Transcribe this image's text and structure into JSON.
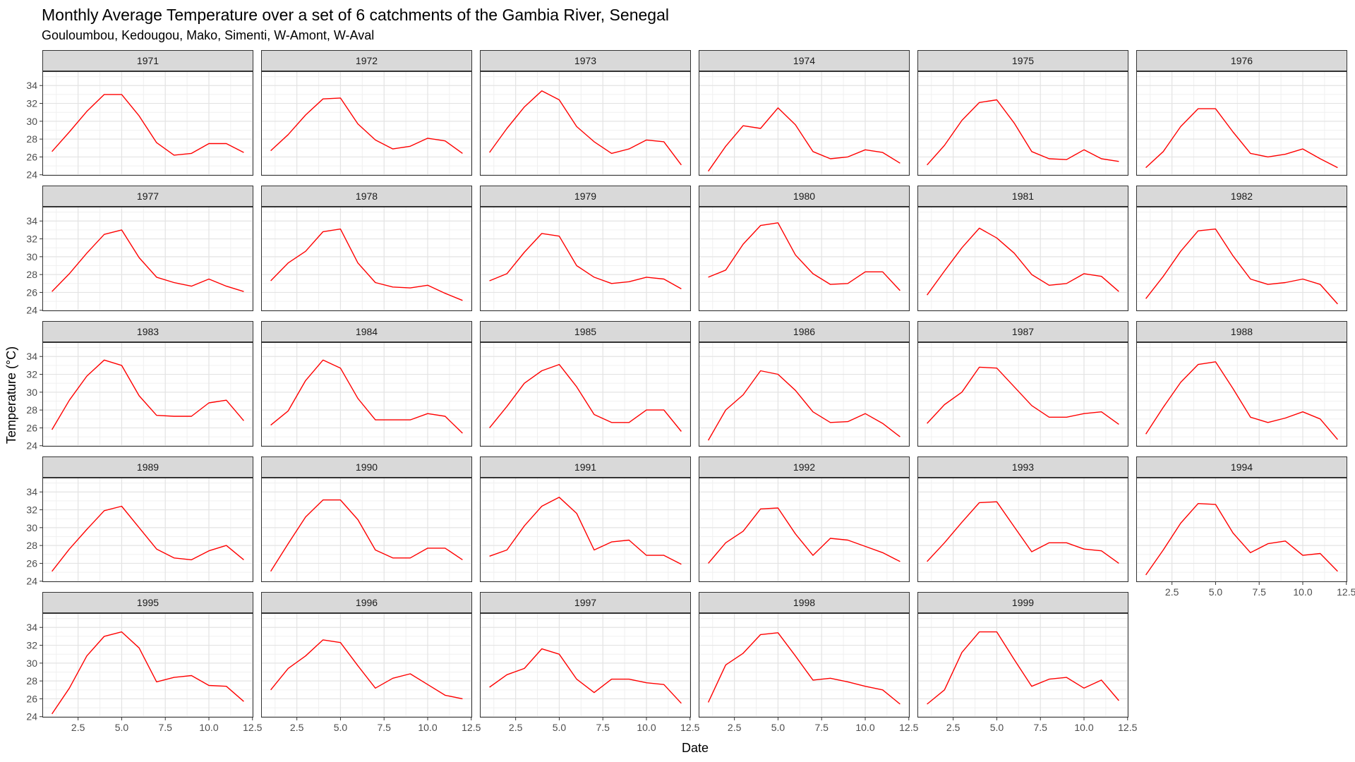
{
  "chart_data": {
    "type": "line",
    "title": "Monthly Average Temperature over a set of 6 catchments of the Gambia River, Senegal",
    "subtitle": "Gouloumbou, Kedougou, Mako, Simenti, W-Amont, W-Aval",
    "xlabel": "Date",
    "ylabel": "Temperature (°C)",
    "xlim": [
      0.45,
      12.55
    ],
    "ylim": [
      23.9,
      35.6
    ],
    "x_ticks": [
      2.5,
      5.0,
      7.5,
      10.0,
      12.5
    ],
    "x_tick_labels": [
      "2.5",
      "5.0",
      "7.5",
      "10.0",
      "12.5"
    ],
    "y_ticks": [
      24,
      26,
      28,
      30,
      32,
      34
    ],
    "y_tick_labels": [
      "24",
      "26",
      "28",
      "30",
      "32",
      "34"
    ],
    "grid": true,
    "line_color": "#ff0000",
    "x": [
      1,
      2,
      3,
      4,
      5,
      6,
      7,
      8,
      9,
      10,
      11,
      12
    ],
    "facets": [
      {
        "label": "1971",
        "values": [
          26.6,
          28.8,
          31.1,
          33.0,
          33.0,
          30.6,
          27.6,
          26.2,
          26.4,
          27.5,
          27.5,
          26.5
        ]
      },
      {
        "label": "1972",
        "values": [
          26.7,
          28.5,
          30.7,
          32.5,
          32.6,
          29.7,
          27.9,
          26.9,
          27.2,
          28.1,
          27.8,
          26.4
        ]
      },
      {
        "label": "1973",
        "values": [
          26.5,
          29.2,
          31.6,
          33.4,
          32.4,
          29.4,
          27.7,
          26.4,
          26.9,
          27.9,
          27.7,
          25.1
        ]
      },
      {
        "label": "1974",
        "values": [
          24.4,
          27.2,
          29.5,
          29.2,
          31.5,
          29.6,
          26.6,
          25.8,
          26.0,
          26.8,
          26.5,
          25.3
        ]
      },
      {
        "label": "1975",
        "values": [
          25.1,
          27.3,
          30.1,
          32.1,
          32.4,
          29.8,
          26.6,
          25.8,
          25.7,
          26.8,
          25.8,
          25.5
        ]
      },
      {
        "label": "1976",
        "values": [
          24.8,
          26.6,
          29.4,
          31.4,
          31.4,
          28.8,
          26.4,
          26.0,
          26.3,
          26.9,
          25.8,
          24.8
        ]
      },
      {
        "label": "1977",
        "values": [
          26.1,
          28.1,
          30.4,
          32.5,
          33.0,
          29.9,
          27.7,
          27.1,
          26.7,
          27.5,
          26.7,
          26.1
        ]
      },
      {
        "label": "1978",
        "values": [
          27.3,
          29.3,
          30.6,
          32.8,
          33.1,
          29.3,
          27.1,
          26.6,
          26.5,
          26.8,
          25.9,
          25.1
        ]
      },
      {
        "label": "1979",
        "values": [
          27.3,
          28.1,
          30.5,
          32.6,
          32.3,
          29.0,
          27.7,
          27.0,
          27.2,
          27.7,
          27.5,
          26.4
        ]
      },
      {
        "label": "1980",
        "values": [
          27.7,
          28.5,
          31.4,
          33.5,
          33.8,
          30.2,
          28.1,
          26.9,
          27.0,
          28.3,
          28.3,
          26.2
        ]
      },
      {
        "label": "1981",
        "values": [
          25.7,
          28.4,
          31.0,
          33.2,
          32.1,
          30.4,
          28.0,
          26.8,
          27.0,
          28.1,
          27.8,
          26.1
        ]
      },
      {
        "label": "1982",
        "values": [
          25.3,
          27.8,
          30.6,
          32.9,
          33.1,
          30.1,
          27.5,
          26.9,
          27.1,
          27.5,
          26.9,
          24.7
        ]
      },
      {
        "label": "1983",
        "values": [
          25.8,
          29.1,
          31.8,
          33.6,
          33.0,
          29.6,
          27.4,
          27.3,
          27.3,
          28.8,
          29.1,
          26.8
        ]
      },
      {
        "label": "1984",
        "values": [
          26.3,
          27.9,
          31.3,
          33.6,
          32.7,
          29.3,
          26.9,
          26.9,
          26.9,
          27.6,
          27.3,
          25.4
        ]
      },
      {
        "label": "1985",
        "values": [
          26.0,
          28.4,
          31.0,
          32.4,
          33.1,
          30.6,
          27.5,
          26.6,
          26.6,
          28.0,
          28.0,
          25.6
        ]
      },
      {
        "label": "1986",
        "values": [
          24.6,
          28.0,
          29.7,
          32.4,
          32.0,
          30.2,
          27.8,
          26.6,
          26.7,
          27.6,
          26.5,
          25.0
        ]
      },
      {
        "label": "1987",
        "values": [
          26.5,
          28.6,
          30.0,
          32.8,
          32.7,
          30.6,
          28.5,
          27.2,
          27.2,
          27.6,
          27.8,
          26.4
        ]
      },
      {
        "label": "1988",
        "values": [
          25.3,
          28.3,
          31.1,
          33.1,
          33.4,
          30.4,
          27.2,
          26.6,
          27.1,
          27.8,
          27.0,
          24.7
        ]
      },
      {
        "label": "1989",
        "values": [
          25.1,
          27.6,
          29.8,
          31.9,
          32.4,
          30.0,
          27.6,
          26.6,
          26.4,
          27.4,
          28.0,
          26.4
        ]
      },
      {
        "label": "1990",
        "values": [
          25.1,
          28.2,
          31.2,
          33.1,
          33.1,
          30.9,
          27.5,
          26.6,
          26.6,
          27.7,
          27.7,
          26.4
        ]
      },
      {
        "label": "1991",
        "values": [
          26.8,
          27.5,
          30.2,
          32.4,
          33.4,
          31.6,
          27.5,
          28.4,
          28.6,
          26.9,
          26.9,
          25.9
        ]
      },
      {
        "label": "1992",
        "values": [
          26.0,
          28.3,
          29.6,
          32.1,
          32.2,
          29.3,
          26.9,
          28.8,
          28.6,
          27.9,
          27.2,
          26.2
        ]
      },
      {
        "label": "1993",
        "values": [
          26.2,
          28.3,
          30.6,
          32.8,
          32.9,
          30.1,
          27.3,
          28.3,
          28.3,
          27.6,
          27.4,
          26.0
        ]
      },
      {
        "label": "1994",
        "values": [
          24.7,
          27.5,
          30.5,
          32.7,
          32.6,
          29.4,
          27.2,
          28.2,
          28.5,
          26.9,
          27.1,
          25.1
        ]
      },
      {
        "label": "1995",
        "values": [
          24.3,
          27.2,
          30.8,
          33.0,
          33.5,
          31.7,
          27.9,
          28.4,
          28.6,
          27.5,
          27.4,
          25.7
        ]
      },
      {
        "label": "1996",
        "values": [
          27.0,
          29.4,
          30.8,
          32.6,
          32.3,
          29.7,
          27.2,
          28.3,
          28.8,
          27.6,
          26.4,
          26.0
        ]
      },
      {
        "label": "1997",
        "values": [
          27.3,
          28.7,
          29.4,
          31.6,
          31.0,
          28.2,
          26.7,
          28.2,
          28.2,
          27.8,
          27.6,
          25.5
        ]
      },
      {
        "label": "1998",
        "values": [
          25.6,
          29.8,
          31.1,
          33.2,
          33.4,
          30.8,
          28.1,
          28.3,
          27.9,
          27.4,
          27.0,
          25.4
        ]
      },
      {
        "label": "1999",
        "values": [
          25.4,
          27.0,
          31.2,
          33.5,
          33.5,
          30.4,
          27.4,
          28.2,
          28.4,
          27.2,
          28.1,
          25.8
        ]
      }
    ]
  }
}
